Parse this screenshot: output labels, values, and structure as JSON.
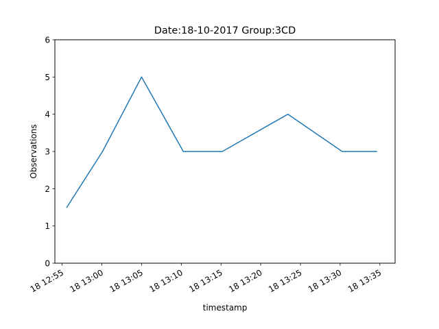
{
  "chart_data": {
    "type": "line",
    "title": "Date:18-10-2017  Group:3CD",
    "xlabel": "timestamp",
    "ylabel": "Observations",
    "ylim": [
      0,
      6
    ],
    "yticks": [
      0,
      1,
      2,
      3,
      4,
      5,
      6
    ],
    "xlim": [
      "2017-10-18 12:54:05",
      "2017-10-18 13:36:55"
    ],
    "xticks": [
      {
        "t": "2017-10-18 12:55:00",
        "label": "18 12:55"
      },
      {
        "t": "2017-10-18 13:00:00",
        "label": "18 13:00"
      },
      {
        "t": "2017-10-18 13:05:00",
        "label": "18 13:05"
      },
      {
        "t": "2017-10-18 13:10:00",
        "label": "18 13:10"
      },
      {
        "t": "2017-10-18 13:15:00",
        "label": "18 13:15"
      },
      {
        "t": "2017-10-18 13:20:00",
        "label": "18 13:20"
      },
      {
        "t": "2017-10-18 13:25:00",
        "label": "18 13:25"
      },
      {
        "t": "2017-10-18 13:30:00",
        "label": "18 13:30"
      },
      {
        "t": "2017-10-18 13:35:00",
        "label": "18 13:35"
      }
    ],
    "grid": false,
    "series": [
      {
        "color": "#1f77b4",
        "x": [
          "2017-10-18 12:55:35",
          "2017-10-18 13:00:05",
          "2017-10-18 13:05:00",
          "2017-10-18 13:10:15",
          "2017-10-18 13:15:10",
          "2017-10-18 13:23:25",
          "2017-10-18 13:30:15",
          "2017-10-18 13:34:35"
        ],
        "y": [
          1.5,
          3.0,
          5.0,
          3.0,
          3.0,
          4.0,
          3.0,
          3.0
        ]
      }
    ]
  }
}
